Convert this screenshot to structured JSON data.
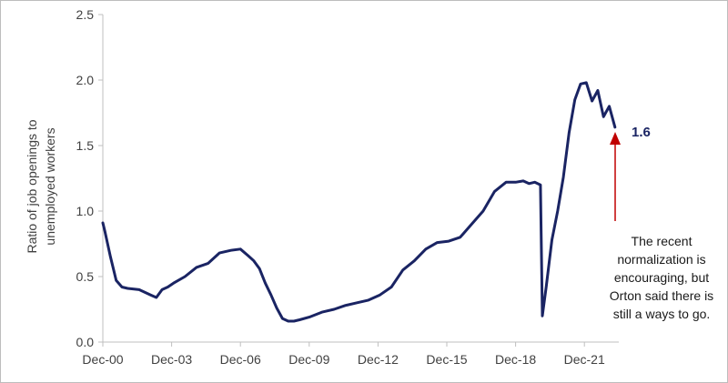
{
  "chart_data": {
    "type": "line",
    "title": "",
    "ylabel_lines": [
      "Ratio of job openings to",
      "unemployed workers"
    ],
    "xlabel": "",
    "ylim": [
      0,
      2.5
    ],
    "yticks": [
      0.0,
      0.5,
      1.0,
      1.5,
      2.0,
      2.5
    ],
    "ytick_labels": [
      "0.0",
      "0.5",
      "1.0",
      "1.5",
      "2.0",
      "2.5"
    ],
    "xlim": [
      2000.917,
      2023.417
    ],
    "xticks": [
      2000.917,
      2003.917,
      2006.917,
      2009.917,
      2012.917,
      2015.917,
      2018.917,
      2021.917
    ],
    "xtick_labels": [
      "Dec-00",
      "Dec-03",
      "Dec-06",
      "Dec-09",
      "Dec-12",
      "Dec-15",
      "Dec-18",
      "Dec-21"
    ],
    "grid": false,
    "series_color": "#1a2463",
    "series": [
      {
        "name": "",
        "x": [
          2000.917,
          2001.0,
          2001.25,
          2001.5,
          2001.75,
          2002.0,
          2002.5,
          2003.0,
          2003.25,
          2003.5,
          2003.75,
          2004.0,
          2004.5,
          2005.0,
          2005.5,
          2006.0,
          2006.5,
          2006.917,
          2007.25,
          2007.5,
          2007.75,
          2008.0,
          2008.25,
          2008.5,
          2008.75,
          2009.0,
          2009.25,
          2009.5,
          2009.917,
          2010.5,
          2011.0,
          2011.5,
          2012.0,
          2012.5,
          2013.0,
          2013.5,
          2014.0,
          2014.5,
          2015.0,
          2015.5,
          2016.0,
          2016.5,
          2017.0,
          2017.5,
          2018.0,
          2018.5,
          2018.917,
          2019.25,
          2019.5,
          2019.75,
          2020.0,
          2020.083,
          2020.25,
          2020.5,
          2020.75,
          2021.0,
          2021.25,
          2021.5,
          2021.75,
          2022.0,
          2022.25,
          2022.5,
          2022.75,
          2023.0,
          2023.25
        ],
        "values": [
          0.91,
          0.85,
          0.65,
          0.47,
          0.42,
          0.41,
          0.4,
          0.36,
          0.34,
          0.4,
          0.42,
          0.45,
          0.5,
          0.57,
          0.6,
          0.68,
          0.7,
          0.71,
          0.66,
          0.62,
          0.56,
          0.45,
          0.36,
          0.26,
          0.18,
          0.16,
          0.16,
          0.17,
          0.19,
          0.23,
          0.25,
          0.28,
          0.3,
          0.32,
          0.36,
          0.42,
          0.55,
          0.62,
          0.71,
          0.76,
          0.77,
          0.8,
          0.9,
          1.0,
          1.15,
          1.22,
          1.22,
          1.23,
          1.21,
          1.22,
          1.2,
          0.2,
          0.42,
          0.78,
          1.0,
          1.26,
          1.6,
          1.85,
          1.97,
          1.98,
          1.84,
          1.92,
          1.72,
          1.8,
          1.64
        ]
      }
    ],
    "end_value_label": "1.6",
    "annotation_lines": [
      "The recent",
      "normalization is",
      "encouraging, but",
      "Orton said there is",
      "still a ways to go."
    ],
    "annotation_color": "#c00000",
    "axis_color": "#bfbfbf"
  }
}
